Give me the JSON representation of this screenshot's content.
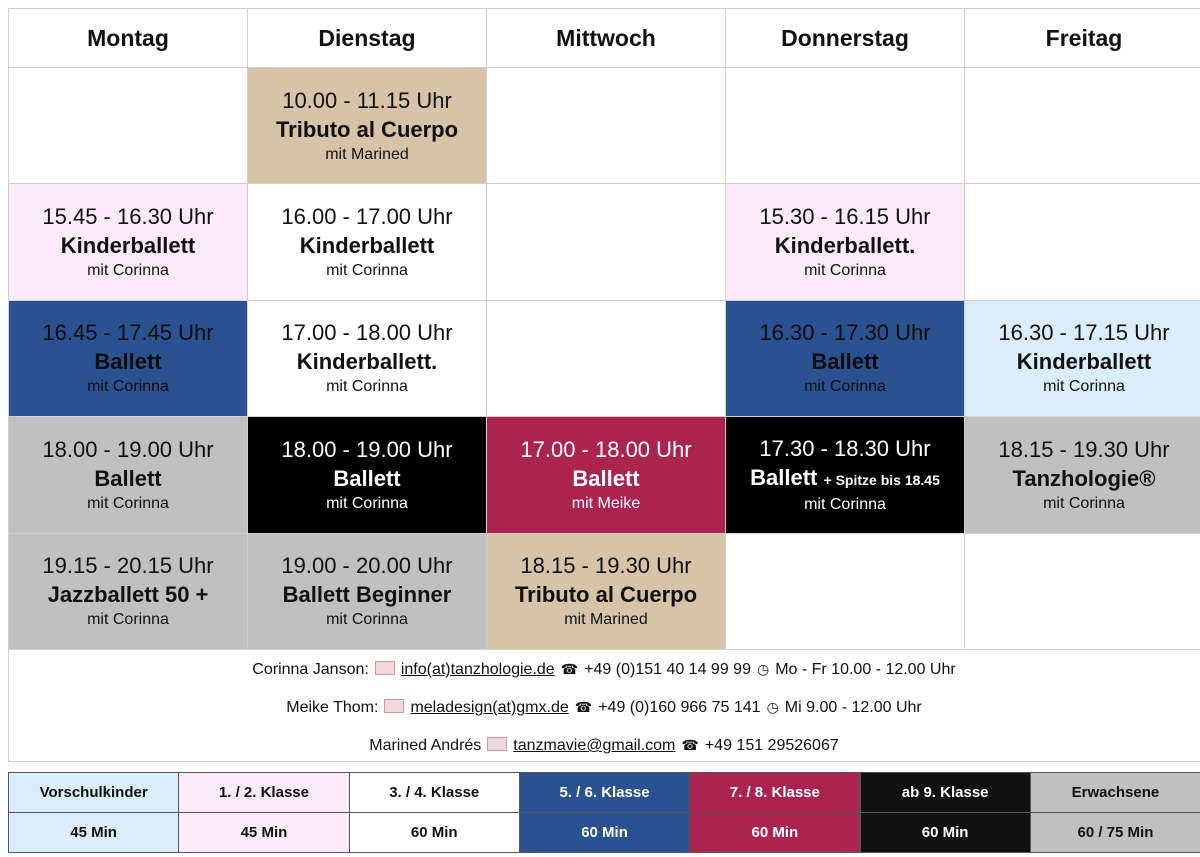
{
  "days": [
    "Montag",
    "Dienstag",
    "Mittwoch",
    "Donnerstag",
    "Freitag"
  ],
  "rows": [
    [
      null,
      {
        "time": "10.00 - 11.15 Uhr",
        "title": "Tributo al Cuerpo",
        "teacher": "mit Marined",
        "color": "#d7c3a8",
        "text_color": "#111111"
      },
      null,
      null,
      null
    ],
    [
      {
        "time": "15.45 - 16.30 Uhr",
        "title": "Kinderballett",
        "teacher": "mit Corinna",
        "color": "#fbebf6",
        "text_color": "#111111"
      },
      {
        "time": "16.00 - 17.00 Uhr",
        "title": "Kinderballett",
        "teacher": "mit Corinna",
        "color": "#ffffff",
        "text_color": "#111111"
      },
      null,
      {
        "time": "15.30 - 16.15 Uhr",
        "title": "Kinderballett.",
        "teacher": "mit Corinna",
        "color": "#fbebf6",
        "text_color": "#111111"
      },
      null
    ],
    [
      {
        "time": "16.45 - 17.45 Uhr",
        "title": "Ballett",
        "teacher": "mit Corinna",
        "color": "#2a5290",
        "text_color": "#0d0d0d"
      },
      {
        "time": "17.00 - 18.00 Uhr",
        "title": "Kinderballett.",
        "teacher": "mit Corinna",
        "color": "#ffffff",
        "text_color": "#111111"
      },
      null,
      {
        "time": "16.30 - 17.30 Uhr",
        "title": "Ballett",
        "teacher": "mit Corinna",
        "color": "#2a5290",
        "text_color": "#0d0d0d"
      },
      {
        "time": "16.30 - 17.15 Uhr",
        "title": "Kinderballett",
        "teacher": "mit Corinna",
        "color": "#d9eefa",
        "text_color": "#111111"
      }
    ],
    [
      {
        "time": "18.00 - 19.00 Uhr",
        "title": "Ballett",
        "teacher": "mit Corinna",
        "color": "#c0c0c0",
        "text_color": "#111111"
      },
      {
        "time": "18.00 - 19.00 Uhr",
        "title": "Ballett",
        "teacher": "mit Corinna",
        "color": "#000000",
        "text_color": "#ffffff"
      },
      {
        "time": "17.00 - 18.00 Uhr",
        "title": "Ballett",
        "teacher": "mit Meike",
        "color": "#ab2450",
        "text_color": "#ffffff"
      },
      {
        "time": "17.30 - 18.30 Uhr",
        "title": "Ballett",
        "extra": "+ Spitze bis 18.45",
        "teacher": "mit Corinna",
        "color": "#000000",
        "text_color": "#ffffff"
      },
      {
        "time": "18.15 - 19.30 Uhr",
        "title": "Tanzhologie®",
        "teacher": "mit Corinna",
        "color": "#c0c0c0",
        "text_color": "#111111"
      }
    ],
    [
      {
        "time": "19.15 - 20.15 Uhr",
        "title": "Jazzballett 50 +",
        "teacher": "mit Corinna",
        "color": "#c0c0c0",
        "text_color": "#111111"
      },
      {
        "time": "19.00 - 20.00 Uhr",
        "title": "Ballett Beginner",
        "teacher": "mit Corinna",
        "color": "#c0c0c0",
        "text_color": "#111111"
      },
      {
        "time": "18.15 - 19.30 Uhr",
        "title": "Tributo al Cuerpo",
        "teacher": "mit Marined",
        "color": "#d7c3a8",
        "text_color": "#111111"
      },
      null,
      null
    ]
  ],
  "contacts": [
    {
      "name": "Corinna Janson:",
      "email": "info(at)tanzhologie.de",
      "phone": "+49 (0)151 40 14 99 99",
      "hours": "Mo - Fr 10.00 - 12.00 Uhr"
    },
    {
      "name": "Meike Thom:",
      "email": "meladesign(at)gmx.de",
      "phone": "+49 (0)160 966 75 141",
      "hours": "Mi 9.00 - 12.00 Uhr"
    },
    {
      "name": "Marined Andrés",
      "email": "tanzmavie@gmail.com",
      "phone": "+49 151 29526067"
    }
  ],
  "legend": [
    {
      "label": "Vorschulkinder",
      "duration": "45 Min",
      "color": "#d9eefa",
      "text_color": "#111111"
    },
    {
      "label": "1. / 2. Klasse",
      "duration": "45 Min",
      "color": "#fbebf6",
      "text_color": "#111111"
    },
    {
      "label": "3. / 4. Klasse",
      "duration": "60 Min",
      "color": "#ffffff",
      "text_color": "#111111"
    },
    {
      "label": "5. / 6. Klasse",
      "duration": "60 Min",
      "color": "#2a5290",
      "text_color": "#ffffff"
    },
    {
      "label": "7. / 8. Klasse",
      "duration": "60 Min",
      "color": "#ab2450",
      "text_color": "#ffffff"
    },
    {
      "label": "ab 9. Klasse",
      "duration": "60 Min",
      "color": "#111111",
      "text_color": "#ffffff"
    },
    {
      "label": "Erwachsene",
      "duration": "60 / 75  Min",
      "color": "#c0c0c0",
      "text_color": "#111111"
    }
  ]
}
